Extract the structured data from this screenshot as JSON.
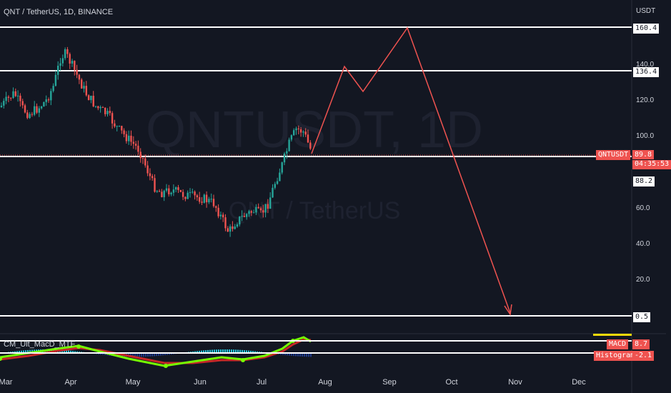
{
  "header": {
    "symbol_title": "QNT / TetherUS, 1D, BINANCE",
    "currency": "USDT"
  },
  "watermark": {
    "ticker": "QNTUSDT, 1D",
    "name": "QNT / TetherUS"
  },
  "price_axis": {
    "ticks": [
      "140.0",
      "120.0",
      "100.0",
      "60.0",
      "40.0",
      "20.0"
    ],
    "levels": [
      "160.4",
      "136.4",
      "88.2",
      "0.5"
    ],
    "current": {
      "ticker": "QNTUSDT",
      "price": "89.8",
      "countdown": "04:35:53"
    }
  },
  "indicator": {
    "name": "CM_Ult_MacD_MTF",
    "macd_label": "MACD",
    "macd_value": "8.7",
    "histogram_label": "Histogram",
    "histogram_value": "-2.1"
  },
  "time_axis": {
    "labels": [
      "Mar",
      "Apr",
      "May",
      "Jun",
      "Jul",
      "Aug",
      "Sep",
      "Oct",
      "Nov",
      "Dec"
    ]
  },
  "colors": {
    "background": "#131722",
    "up": "#26a69a",
    "down": "#ef5350",
    "projection": "#ef5350",
    "level_line": "#ffffff"
  }
}
